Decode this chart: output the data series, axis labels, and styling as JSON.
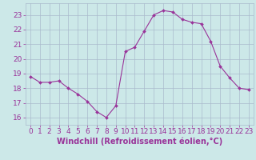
{
  "x": [
    0,
    1,
    2,
    3,
    4,
    5,
    6,
    7,
    8,
    9,
    10,
    11,
    12,
    13,
    14,
    15,
    16,
    17,
    18,
    19,
    20,
    21,
    22,
    23
  ],
  "y": [
    18.8,
    18.4,
    18.4,
    18.5,
    18.0,
    17.6,
    17.1,
    16.4,
    16.0,
    16.8,
    20.5,
    20.8,
    21.9,
    23.0,
    23.3,
    23.2,
    22.7,
    22.5,
    22.4,
    21.2,
    19.5,
    18.7,
    18.0,
    17.9
  ],
  "line_color": "#993399",
  "marker_color": "#993399",
  "bg_color": "#cce8e8",
  "grid_color": "#aabbcc",
  "xlabel": "Windchill (Refroidissement éolien,°C)",
  "ylim": [
    15.5,
    23.8
  ],
  "xlim": [
    -0.5,
    23.5
  ],
  "yticks": [
    16,
    17,
    18,
    19,
    20,
    21,
    22,
    23
  ],
  "xticks": [
    0,
    1,
    2,
    3,
    4,
    5,
    6,
    7,
    8,
    9,
    10,
    11,
    12,
    13,
    14,
    15,
    16,
    17,
    18,
    19,
    20,
    21,
    22,
    23
  ],
  "font_color": "#993399",
  "tick_font_size": 6.5,
  "label_font_size": 7.0
}
